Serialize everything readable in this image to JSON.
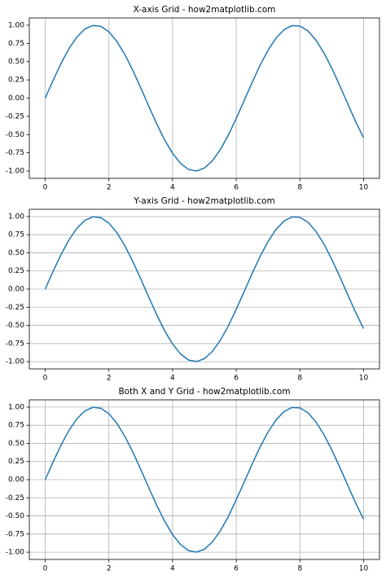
{
  "chart_data": [
    {
      "type": "line",
      "title": "X-axis Grid - how2matplotlib.com",
      "grid": "x",
      "color": "#1f77b4",
      "x": [
        0,
        0.25,
        0.5,
        0.75,
        1,
        1.25,
        1.5,
        1.75,
        2,
        2.25,
        2.5,
        2.75,
        3,
        3.25,
        3.5,
        3.75,
        4,
        4.25,
        4.5,
        4.75,
        5,
        5.25,
        5.5,
        5.75,
        6,
        6.25,
        6.5,
        6.75,
        7,
        7.25,
        7.5,
        7.75,
        8,
        8.25,
        8.5,
        8.75,
        9,
        9.25,
        9.5,
        9.75,
        10
      ],
      "values": [
        0,
        0.247,
        0.479,
        0.682,
        0.841,
        0.949,
        0.997,
        0.984,
        0.909,
        0.778,
        0.598,
        0.382,
        0.141,
        -0.108,
        -0.351,
        -0.572,
        -0.757,
        -0.895,
        -0.978,
        -0.999,
        -0.959,
        -0.859,
        -0.706,
        -0.51,
        -0.279,
        -0.033,
        0.215,
        0.451,
        0.657,
        0.823,
        0.938,
        0.995,
        0.989,
        0.923,
        0.798,
        0.624,
        0.412,
        0.174,
        -0.075,
        -0.32,
        -0.544
      ],
      "xlim": [
        -0.5,
        10.5
      ],
      "ylim": [
        -1.1,
        1.1
      ],
      "xticks": [
        0,
        2,
        4,
        6,
        8,
        10
      ],
      "yticks": [
        {
          "value": 1,
          "label": "1.00"
        },
        {
          "value": 0.75,
          "label": "0.75"
        },
        {
          "value": 0.5,
          "label": "0.50"
        },
        {
          "value": 0.25,
          "label": "0.25"
        },
        {
          "value": 0,
          "label": "0.00"
        },
        {
          "value": -0.25,
          "label": "-0.25"
        },
        {
          "value": -0.5,
          "label": "-0.50"
        },
        {
          "value": -0.75,
          "label": "-0.75"
        },
        {
          "value": -1,
          "label": "-1.00"
        }
      ]
    },
    {
      "type": "line",
      "title": "Y-axis Grid - how2matplotlib.com",
      "grid": "y",
      "color": "#1f77b4",
      "x": [
        0,
        0.25,
        0.5,
        0.75,
        1,
        1.25,
        1.5,
        1.75,
        2,
        2.25,
        2.5,
        2.75,
        3,
        3.25,
        3.5,
        3.75,
        4,
        4.25,
        4.5,
        4.75,
        5,
        5.25,
        5.5,
        5.75,
        6,
        6.25,
        6.5,
        6.75,
        7,
        7.25,
        7.5,
        7.75,
        8,
        8.25,
        8.5,
        8.75,
        9,
        9.25,
        9.5,
        9.75,
        10
      ],
      "values": [
        0,
        0.247,
        0.479,
        0.682,
        0.841,
        0.949,
        0.997,
        0.984,
        0.909,
        0.778,
        0.598,
        0.382,
        0.141,
        -0.108,
        -0.351,
        -0.572,
        -0.757,
        -0.895,
        -0.978,
        -0.999,
        -0.959,
        -0.859,
        -0.706,
        -0.51,
        -0.279,
        -0.033,
        0.215,
        0.451,
        0.657,
        0.823,
        0.938,
        0.995,
        0.989,
        0.923,
        0.798,
        0.624,
        0.412,
        0.174,
        -0.075,
        -0.32,
        -0.544
      ],
      "xlim": [
        -0.5,
        10.5
      ],
      "ylim": [
        -1.1,
        1.1
      ],
      "xticks": [
        0,
        2,
        4,
        6,
        8,
        10
      ],
      "yticks": [
        {
          "value": 1,
          "label": "1.00"
        },
        {
          "value": 0.75,
          "label": "0.75"
        },
        {
          "value": 0.5,
          "label": "0.50"
        },
        {
          "value": 0.25,
          "label": "0.25"
        },
        {
          "value": 0,
          "label": "0.00"
        },
        {
          "value": -0.25,
          "label": "-0.25"
        },
        {
          "value": -0.5,
          "label": "-0.50"
        },
        {
          "value": -0.75,
          "label": "-0.75"
        },
        {
          "value": -1,
          "label": "-1.00"
        }
      ]
    },
    {
      "type": "line",
      "title": "Both X and Y Grid - how2matplotlib.com",
      "grid": "both",
      "color": "#1f77b4",
      "x": [
        0,
        0.25,
        0.5,
        0.75,
        1,
        1.25,
        1.5,
        1.75,
        2,
        2.25,
        2.5,
        2.75,
        3,
        3.25,
        3.5,
        3.75,
        4,
        4.25,
        4.5,
        4.75,
        5,
        5.25,
        5.5,
        5.75,
        6,
        6.25,
        6.5,
        6.75,
        7,
        7.25,
        7.5,
        7.75,
        8,
        8.25,
        8.5,
        8.75,
        9,
        9.25,
        9.5,
        9.75,
        10
      ],
      "values": [
        0,
        0.247,
        0.479,
        0.682,
        0.841,
        0.949,
        0.997,
        0.984,
        0.909,
        0.778,
        0.598,
        0.382,
        0.141,
        -0.108,
        -0.351,
        -0.572,
        -0.757,
        -0.895,
        -0.978,
        -0.999,
        -0.959,
        -0.859,
        -0.706,
        -0.51,
        -0.279,
        -0.033,
        0.215,
        0.451,
        0.657,
        0.823,
        0.938,
        0.995,
        0.989,
        0.923,
        0.798,
        0.624,
        0.412,
        0.174,
        -0.075,
        -0.32,
        -0.544
      ],
      "xlim": [
        -0.5,
        10.5
      ],
      "ylim": [
        -1.1,
        1.1
      ],
      "xticks": [
        0,
        2,
        4,
        6,
        8,
        10
      ],
      "yticks": [
        {
          "value": 1,
          "label": "1.00"
        },
        {
          "value": 0.75,
          "label": "0.75"
        },
        {
          "value": 0.5,
          "label": "0.50"
        },
        {
          "value": 0.25,
          "label": "0.25"
        },
        {
          "value": 0,
          "label": "0.00"
        },
        {
          "value": -0.25,
          "label": "-0.25"
        },
        {
          "value": -0.5,
          "label": "-0.50"
        },
        {
          "value": -0.75,
          "label": "-0.75"
        },
        {
          "value": -1,
          "label": "-1.00"
        }
      ]
    }
  ]
}
